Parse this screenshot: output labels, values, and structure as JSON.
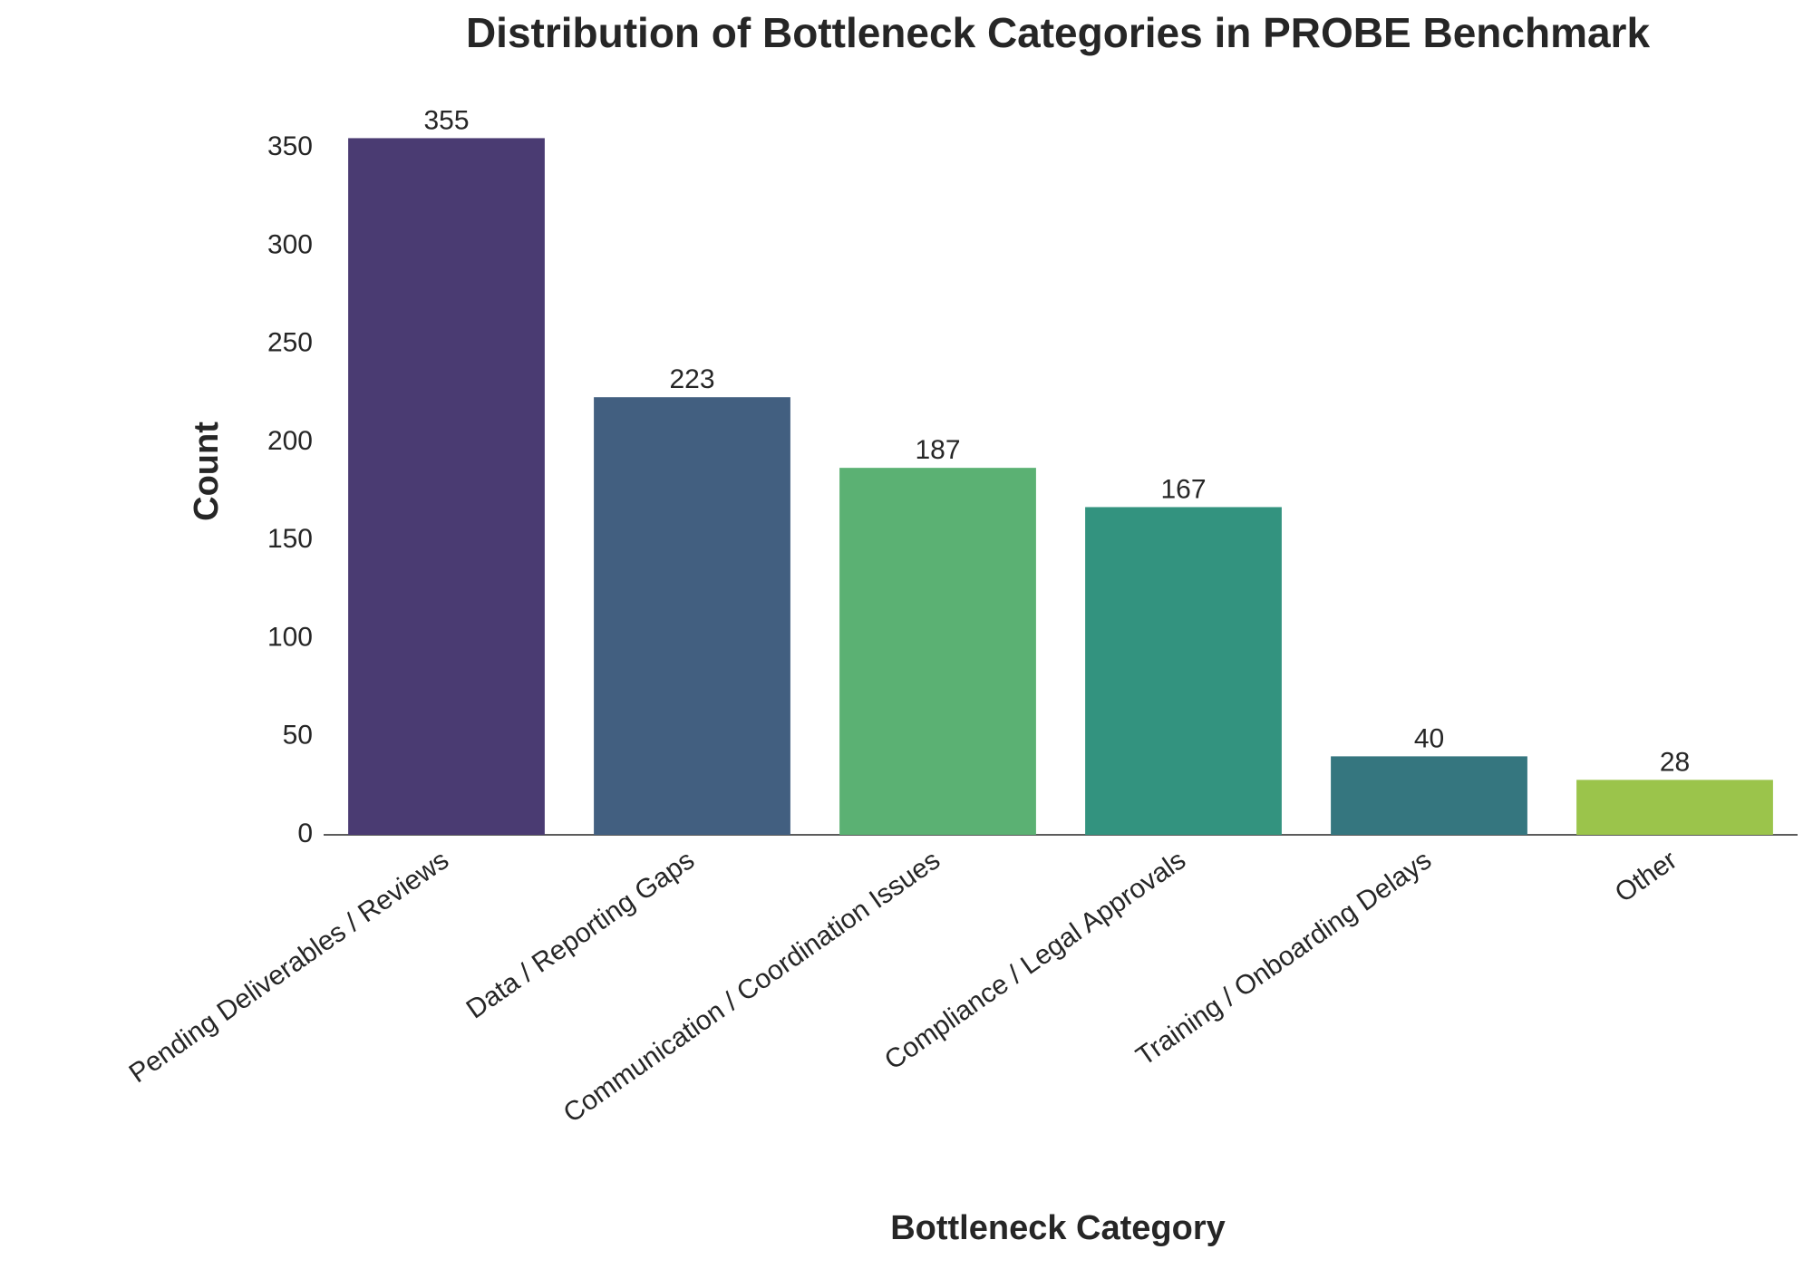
{
  "chart_data": {
    "type": "bar",
    "title": "Distribution of Bottleneck Categories in PROBE Benchmark",
    "x_label": "Bottleneck Category",
    "y_label": "Count",
    "categories": [
      "Pending Deliverables / Reviews",
      "Data / Reporting Gaps",
      "Communication / Coordination Issues",
      "Compliance / Legal Approvals",
      "Training / Onboarding Delays",
      "Other"
    ],
    "values": [
      355,
      223,
      187,
      167,
      40,
      28
    ],
    "colors": [
      "#4a3b72",
      "#425f80",
      "#5bb173",
      "#33937f",
      "#35767f",
      "#9bc44b"
    ],
    "ylim": [
      0,
      372.75
    ],
    "yticks": [
      0,
      50,
      100,
      150,
      200,
      250,
      300,
      350
    ],
    "grid": false
  }
}
